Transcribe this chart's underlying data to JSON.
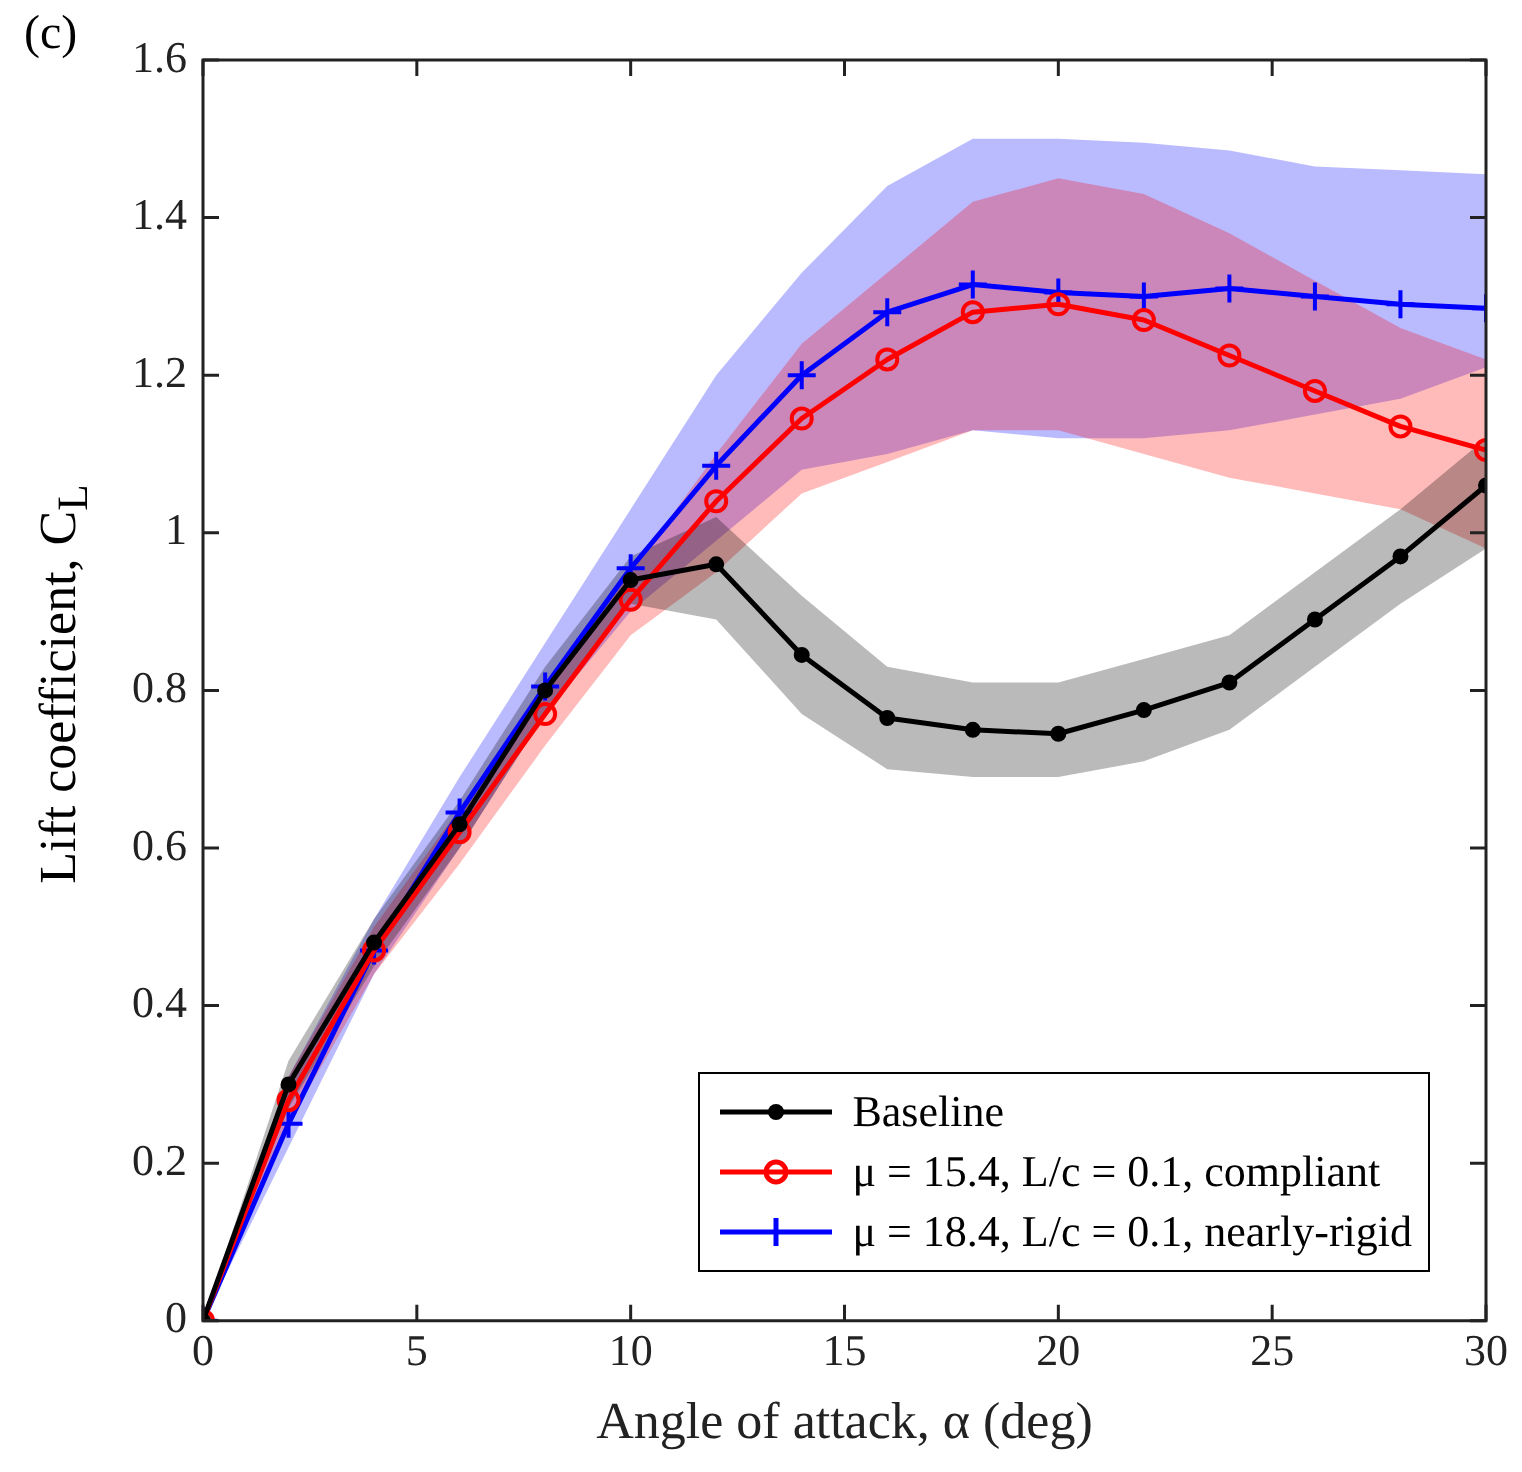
{
  "chart_data": {
    "type": "line",
    "xlabel": "Angle of attack, α (deg)",
    "ylabel": "Lift coefficient, C$_{L}$",
    "annotations": [
      "(c)"
    ],
    "x": [
      0,
      2,
      4,
      6,
      8,
      10,
      12,
      14,
      16,
      18,
      20,
      22,
      24,
      26,
      28,
      30
    ],
    "xlim": [
      0,
      30
    ],
    "xticks": [
      0,
      5,
      10,
      15,
      20,
      25,
      30
    ],
    "ylim": [
      0,
      1.6
    ],
    "yticks": [
      0,
      0.2,
      0.4,
      0.6,
      0.8,
      1,
      1.2,
      1.4,
      1.6
    ],
    "grid": false,
    "legend": "bottom right",
    "line_style": "solid",
    "series": [
      {
        "name": "Baseline",
        "color": "#000000",
        "marker": "circle",
        "values": [
          0,
          0.3,
          0.48,
          0.63,
          0.8,
          0.94,
          0.96,
          0.845,
          0.765,
          0.75,
          0.745,
          0.775,
          0.81,
          0.89,
          0.97,
          1.06
        ],
        "lower": [
          0,
          0.27,
          0.45,
          0.6,
          0.77,
          0.91,
          0.89,
          0.77,
          0.7,
          0.69,
          0.69,
          0.71,
          0.75,
          0.83,
          0.91,
          0.98
        ],
        "upper": [
          0,
          0.33,
          0.51,
          0.66,
          0.83,
          0.97,
          1.02,
          0.92,
          0.83,
          0.81,
          0.81,
          0.84,
          0.87,
          0.95,
          1.03,
          1.12
        ]
      },
      {
        "name": "μ = 15.4, L/c = 0.1, compliant",
        "color": "#ff0000",
        "marker": "circle",
        "values": [
          0,
          0.28,
          0.47,
          0.62,
          0.77,
          0.915,
          1.04,
          1.145,
          1.22,
          1.28,
          1.29,
          1.27,
          1.225,
          1.18,
          1.135,
          1.105
        ],
        "lower": [
          0,
          0.25,
          0.44,
          0.58,
          0.73,
          0.87,
          0.95,
          1.05,
          1.09,
          1.13,
          1.13,
          1.1,
          1.07,
          1.05,
          1.03,
          0.98
        ],
        "upper": [
          0,
          0.31,
          0.5,
          0.65,
          0.8,
          0.95,
          1.1,
          1.24,
          1.33,
          1.42,
          1.45,
          1.43,
          1.38,
          1.32,
          1.26,
          1.22
        ]
      },
      {
        "name": "μ = 18.4, L/c = 0.1, nearly-rigid",
        "color": "#0000ff",
        "marker": "cross",
        "values": [
          0,
          0.25,
          0.47,
          0.645,
          0.805,
          0.955,
          1.085,
          1.2,
          1.28,
          1.315,
          1.305,
          1.3,
          1.31,
          1.3,
          1.29,
          1.285
        ],
        "lower": [
          0,
          0.22,
          0.44,
          0.6,
          0.77,
          0.9,
          0.99,
          1.08,
          1.1,
          1.13,
          1.12,
          1.12,
          1.13,
          1.15,
          1.17,
          1.21
        ],
        "upper": [
          0,
          0.31,
          0.51,
          0.69,
          0.86,
          1.03,
          1.2,
          1.33,
          1.44,
          1.5,
          1.5,
          1.495,
          1.485,
          1.465,
          1.46,
          1.455
        ]
      }
    ]
  }
}
